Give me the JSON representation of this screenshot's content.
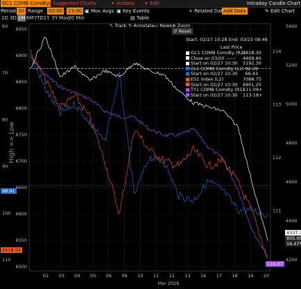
{
  "toolbar": {
    "ticker": "GC1 COMB Comdty",
    "suggested": "Suggested Charts",
    "actions": "Actions",
    "edit": "Edit",
    "title": "Intraday Candle Chart"
  },
  "range_bar": {
    "period_label": "Period",
    "period_value": "30",
    "range_label": "Range",
    "start_time": "00:00",
    "end_time": "23:00",
    "mov_avgs": "Mov Avgs",
    "key_events": "Key Events",
    "related_data": "Related Data",
    "add_data": "Add Data",
    "edit_chart": "Edit Chart"
  },
  "intervals": {
    "items": [
      "1D",
      "3D",
      "1M",
      "6M",
      "YTD",
      "1Y",
      "5Y",
      "Max",
      "30 Min"
    ],
    "selected": "1M",
    "table": "Table"
  },
  "tools": [
    "Track",
    "Annotate",
    "News",
    "Zoom"
  ],
  "reset": "Reset",
  "legend": {
    "header": "Start: 02/27 10:28   End: 03/23 09:46",
    "last_price": "Last Price",
    "rows": [
      {
        "text": "GC1 COMB Comdty  (R2)",
        "value": "4818.30",
        "color": "#ffffff"
      },
      {
        "text": "Close on 03/20  ------",
        "value": "4609.60",
        "color": "#ffffff"
      },
      {
        "text": "Start on 02/27 10:30",
        "value": "5192.30",
        "color": "#ffffff"
      },
      {
        "text": "CL1 COMB Comdty  (L1)",
        "value": "92.29",
        "color": "#1f6fd6"
      },
      {
        "text": "Start on 02/27 10:30",
        "value": "66.43",
        "color": "#1f6fd6"
      },
      {
        "text": "ES1 Index  (L2)",
        "value": "7088.75",
        "color": "#ff5a1f"
      },
      {
        "text": "Start on 02/27 10:30",
        "value": "6901.25",
        "color": "#ff5a1f"
      },
      {
        "text": "TY1 COMB Comdty  (R1)",
        "value": "111-09+",
        "color": "#a64dff"
      },
      {
        "text": "Start on 02/27 10:30",
        "value": "113-18+",
        "color": "#a64dff"
      }
    ]
  },
  "high_low_label": "High => Low",
  "axes": {
    "left_outer": [
      "60",
      "70",
      "80",
      "90",
      "100",
      "110"
    ],
    "left_inner": [
      "6950",
      "6900",
      "6850",
      "6800",
      "6750",
      "6700",
      "6650",
      "6600",
      "6550",
      "6500"
    ],
    "right_inner": [
      "114",
      "113",
      "112",
      "111",
      "110"
    ],
    "right_outer": [
      "5400",
      "5200",
      "5000",
      "4800",
      "4600",
      "4400",
      "4200"
    ],
    "x_days": [
      "02",
      "03",
      "04",
      "05",
      "06",
      "09",
      "10",
      "11",
      "12",
      "13",
      "16",
      "17",
      "18",
      "19",
      "20"
    ],
    "month_label": "Mar 2026"
  },
  "tags": {
    "left_blue": "98.91",
    "left_orange": "6518.50",
    "right_purple": "110-07",
    "right_white": "4337.30",
    "right_855": "855.00",
    "right_pct": "16.47%"
  },
  "chart_data": {
    "type": "line",
    "x": [
      "02-27",
      "03-02",
      "03-03",
      "03-04",
      "03-05",
      "03-06",
      "03-09",
      "03-10",
      "03-11",
      "03-12",
      "03-13",
      "03-16",
      "03-17",
      "03-18",
      "03-19",
      "03-20",
      "03-23"
    ],
    "series": [
      {
        "name": "GC1 COMB Comdty",
        "axis": "right_outer",
        "values": [
          5192,
          5350,
          5150,
          5200,
          5130,
          5180,
          5150,
          5220,
          5180,
          5160,
          5080,
          5020,
          5000,
          4980,
          4900,
          4610,
          4337
        ]
      },
      {
        "name": "CL1 COMB Comdty",
        "axis": "left_outer",
        "values": [
          66,
          73,
          78,
          76,
          80,
          84,
          70,
          95,
          87,
          88,
          95,
          96,
          92,
          94,
          98,
          98,
          99
        ]
      },
      {
        "name": "ES1 Index",
        "axis": "left_inner",
        "values": [
          6900,
          6850,
          6800,
          6820,
          6780,
          6700,
          6600,
          6760,
          6720,
          6700,
          6690,
          6720,
          6690,
          6700,
          6660,
          6600,
          6518
        ]
      },
      {
        "name": "TY1 COMB Comdty",
        "axis": "right_inner",
        "values": [
          113.5,
          113.2,
          113.0,
          112.9,
          112.8,
          112.6,
          112.5,
          112.5,
          112.3,
          112.2,
          112.2,
          112.3,
          112.0,
          111.8,
          111.3,
          110.6,
          110.2
        ]
      }
    ]
  },
  "colors": {
    "gold": "#ffffff",
    "crude": "#1f6fd6",
    "es": "#ff5a1f",
    "ty": "#a64dff",
    "accent": "#f28c00"
  }
}
